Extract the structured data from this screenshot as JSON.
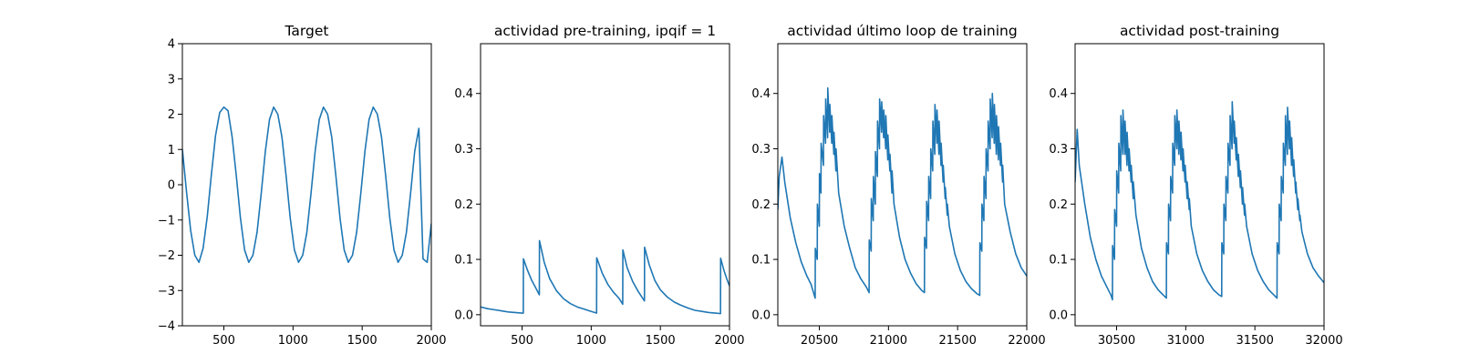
{
  "chart_data": [
    {
      "type": "line",
      "title": "Target",
      "xlabel": "",
      "ylabel": "",
      "xlim": [
        200,
        2000
      ],
      "ylim": [
        -4,
        4
      ],
      "xticks": [
        500,
        1000,
        1500,
        2000
      ],
      "yticks": [
        -4,
        -3,
        -2,
        -1,
        0,
        1,
        2,
        3,
        4
      ],
      "grid": false,
      "color": "#1f77b4",
      "x": [
        200,
        230,
        260,
        290,
        320,
        350,
        380,
        410,
        440,
        470,
        500,
        530,
        560,
        590,
        620,
        650,
        680,
        710,
        740,
        770,
        800,
        830,
        860,
        890,
        920,
        950,
        980,
        1010,
        1040,
        1070,
        1100,
        1130,
        1160,
        1190,
        1220,
        1250,
        1280,
        1310,
        1340,
        1370,
        1400,
        1430,
        1460,
        1490,
        1520,
        1550,
        1580,
        1610,
        1640,
        1670,
        1700,
        1730,
        1760,
        1790,
        1820,
        1850,
        1880,
        1910,
        1940,
        1970,
        2000
      ],
      "y": [
        1.0,
        -0.2,
        -1.3,
        -2.0,
        -2.2,
        -1.8,
        -0.9,
        0.3,
        1.4,
        2.05,
        2.2,
        2.1,
        1.35,
        0.25,
        -0.95,
        -1.85,
        -2.2,
        -2.0,
        -1.35,
        -0.25,
        0.95,
        1.85,
        2.2,
        2.0,
        1.35,
        0.25,
        -0.95,
        -1.85,
        -2.2,
        -2.0,
        -1.35,
        -0.25,
        0.95,
        1.85,
        2.2,
        2.0,
        1.35,
        0.25,
        -0.95,
        -1.85,
        -2.2,
        -2.0,
        -1.35,
        -0.25,
        0.95,
        1.85,
        2.2,
        2.0,
        1.35,
        0.25,
        -0.95,
        -1.85,
        -2.2,
        -2.0,
        -1.35,
        -0.25,
        0.95,
        1.6,
        -2.1,
        -2.2,
        -1.1
      ]
    },
    {
      "type": "line",
      "title": "actividad pre-training, ipqif = 1",
      "xlabel": "",
      "ylabel": "",
      "xlim": [
        200,
        2000
      ],
      "ylim": [
        -0.02,
        0.49
      ],
      "xticks": [
        500,
        1000,
        1500,
        2000
      ],
      "yticks": [
        0.0,
        0.1,
        0.2,
        0.3,
        0.4
      ],
      "grid": false,
      "color": "#1f77b4",
      "x": [
        200,
        250,
        300,
        350,
        400,
        450,
        500,
        509,
        510,
        540,
        570,
        600,
        625,
        626,
        660,
        700,
        750,
        800,
        850,
        900,
        950,
        1000,
        1039,
        1040,
        1080,
        1120,
        1160,
        1200,
        1228,
        1229,
        1260,
        1300,
        1340,
        1385,
        1386,
        1420,
        1460,
        1500,
        1550,
        1600,
        1650,
        1700,
        1750,
        1800,
        1850,
        1900,
        1935,
        1936,
        1960,
        1980,
        2000
      ],
      "y": [
        0.014,
        0.011,
        0.009,
        0.007,
        0.005,
        0.004,
        0.003,
        0.003,
        0.101,
        0.08,
        0.062,
        0.048,
        0.036,
        0.134,
        0.095,
        0.065,
        0.043,
        0.029,
        0.02,
        0.014,
        0.01,
        0.006,
        0.003,
        0.103,
        0.075,
        0.055,
        0.041,
        0.03,
        0.019,
        0.117,
        0.085,
        0.06,
        0.042,
        0.025,
        0.122,
        0.09,
        0.062,
        0.045,
        0.032,
        0.023,
        0.017,
        0.012,
        0.008,
        0.006,
        0.004,
        0.003,
        0.002,
        0.102,
        0.08,
        0.065,
        0.052
      ]
    },
    {
      "type": "line",
      "title": "actividad último loop de training",
      "xlabel": "",
      "ylabel": "",
      "xlim": [
        20200,
        22000
      ],
      "ylim": [
        -0.02,
        0.49
      ],
      "xticks": [
        20500,
        21000,
        21500,
        22000
      ],
      "yticks": [
        0.0,
        0.1,
        0.2,
        0.3,
        0.4
      ],
      "grid": false,
      "color": "#1f77b4",
      "x": [
        20200,
        20210,
        20230,
        20250,
        20290,
        20330,
        20370,
        20410,
        20440,
        20470,
        20471,
        20485,
        20486,
        20500,
        20501,
        20512,
        20513,
        20530,
        20531,
        20545,
        20546,
        20560,
        20561,
        20575,
        20576,
        20590,
        20591,
        20605,
        20606,
        20620,
        20621,
        20640,
        20680,
        20720,
        20760,
        20800,
        20840,
        20860,
        20861,
        20875,
        20876,
        20890,
        20891,
        20905,
        20906,
        20920,
        20921,
        20935,
        20936,
        20950,
        20951,
        20965,
        20966,
        20980,
        20981,
        20995,
        20996,
        21010,
        21011,
        21025,
        21026,
        21040,
        21080,
        21120,
        21160,
        21200,
        21240,
        21260,
        21261,
        21275,
        21276,
        21290,
        21291,
        21305,
        21306,
        21320,
        21321,
        21335,
        21336,
        21350,
        21351,
        21365,
        21366,
        21380,
        21381,
        21395,
        21396,
        21410,
        21411,
        21425,
        21426,
        21440,
        21480,
        21520,
        21560,
        21600,
        21640,
        21660,
        21661,
        21675,
        21676,
        21690,
        21691,
        21705,
        21706,
        21720,
        21721,
        21735,
        21736,
        21750,
        21751,
        21765,
        21766,
        21780,
        21781,
        21795,
        21796,
        21810,
        21811,
        21825,
        21826,
        21840,
        21880,
        21920,
        21960,
        22000
      ],
      "y": [
        0.19,
        0.25,
        0.285,
        0.24,
        0.175,
        0.13,
        0.095,
        0.07,
        0.055,
        0.03,
        0.12,
        0.1,
        0.2,
        0.16,
        0.255,
        0.22,
        0.31,
        0.27,
        0.36,
        0.31,
        0.39,
        0.32,
        0.41,
        0.33,
        0.38,
        0.31,
        0.36,
        0.29,
        0.33,
        0.26,
        0.3,
        0.22,
        0.16,
        0.12,
        0.085,
        0.065,
        0.05,
        0.04,
        0.135,
        0.115,
        0.21,
        0.17,
        0.25,
        0.2,
        0.295,
        0.25,
        0.35,
        0.3,
        0.39,
        0.33,
        0.385,
        0.32,
        0.37,
        0.3,
        0.36,
        0.28,
        0.325,
        0.26,
        0.29,
        0.22,
        0.26,
        0.2,
        0.14,
        0.1,
        0.075,
        0.056,
        0.044,
        0.04,
        0.14,
        0.12,
        0.205,
        0.17,
        0.25,
        0.21,
        0.3,
        0.26,
        0.35,
        0.29,
        0.38,
        0.31,
        0.37,
        0.29,
        0.35,
        0.27,
        0.31,
        0.24,
        0.27,
        0.21,
        0.23,
        0.18,
        0.2,
        0.16,
        0.11,
        0.08,
        0.06,
        0.047,
        0.038,
        0.035,
        0.13,
        0.115,
        0.2,
        0.17,
        0.25,
        0.21,
        0.3,
        0.26,
        0.35,
        0.3,
        0.39,
        0.32,
        0.4,
        0.31,
        0.38,
        0.29,
        0.36,
        0.28,
        0.34,
        0.27,
        0.31,
        0.24,
        0.27,
        0.2,
        0.15,
        0.11,
        0.085,
        0.07
      ]
    },
    {
      "type": "line",
      "title": "actividad post-training",
      "xlabel": "",
      "ylabel": "",
      "xlim": [
        30200,
        32000
      ],
      "ylim": [
        -0.02,
        0.49
      ],
      "xticks": [
        30500,
        31000,
        31500,
        32000
      ],
      "yticks": [
        0.0,
        0.1,
        0.2,
        0.3,
        0.4
      ],
      "grid": false,
      "color": "#1f77b4",
      "x": [
        30200,
        30215,
        30230,
        30270,
        30310,
        30350,
        30390,
        30430,
        30460,
        30470,
        30471,
        30485,
        30486,
        30500,
        30501,
        30515,
        30516,
        30530,
        30531,
        30545,
        30546,
        30560,
        30561,
        30575,
        30576,
        30590,
        30591,
        30605,
        30606,
        30620,
        30621,
        30640,
        30680,
        30720,
        30760,
        30800,
        30840,
        30860,
        30861,
        30875,
        30876,
        30890,
        30891,
        30905,
        30906,
        30920,
        30921,
        30935,
        30936,
        30950,
        30951,
        30965,
        30966,
        30980,
        30981,
        30995,
        30996,
        31010,
        31011,
        31025,
        31026,
        31040,
        31080,
        31120,
        31160,
        31200,
        31240,
        31260,
        31261,
        31275,
        31276,
        31290,
        31291,
        31305,
        31306,
        31320,
        31321,
        31335,
        31336,
        31350,
        31351,
        31365,
        31366,
        31380,
        31381,
        31395,
        31396,
        31410,
        31411,
        31425,
        31426,
        31440,
        31480,
        31520,
        31560,
        31600,
        31640,
        31660,
        31661,
        31675,
        31676,
        31690,
        31691,
        31705,
        31706,
        31720,
        31721,
        31735,
        31736,
        31750,
        31751,
        31765,
        31766,
        31780,
        31781,
        31795,
        31796,
        31810,
        31811,
        31825,
        31826,
        31840,
        31880,
        31920,
        31960,
        32000
      ],
      "y": [
        0.24,
        0.335,
        0.27,
        0.2,
        0.14,
        0.1,
        0.07,
        0.05,
        0.035,
        0.027,
        0.125,
        0.1,
        0.19,
        0.16,
        0.26,
        0.22,
        0.31,
        0.26,
        0.36,
        0.29,
        0.37,
        0.29,
        0.35,
        0.27,
        0.33,
        0.26,
        0.3,
        0.24,
        0.27,
        0.21,
        0.24,
        0.18,
        0.12,
        0.085,
        0.06,
        0.045,
        0.035,
        0.03,
        0.13,
        0.11,
        0.2,
        0.17,
        0.25,
        0.22,
        0.31,
        0.27,
        0.36,
        0.3,
        0.37,
        0.29,
        0.35,
        0.28,
        0.33,
        0.26,
        0.3,
        0.24,
        0.27,
        0.21,
        0.24,
        0.19,
        0.21,
        0.16,
        0.11,
        0.08,
        0.06,
        0.045,
        0.036,
        0.033,
        0.13,
        0.11,
        0.2,
        0.17,
        0.25,
        0.22,
        0.31,
        0.27,
        0.36,
        0.3,
        0.385,
        0.31,
        0.35,
        0.28,
        0.32,
        0.25,
        0.29,
        0.23,
        0.26,
        0.2,
        0.23,
        0.18,
        0.2,
        0.16,
        0.11,
        0.08,
        0.06,
        0.045,
        0.035,
        0.03,
        0.13,
        0.11,
        0.2,
        0.17,
        0.25,
        0.22,
        0.31,
        0.27,
        0.36,
        0.29,
        0.375,
        0.3,
        0.35,
        0.27,
        0.32,
        0.25,
        0.28,
        0.22,
        0.24,
        0.19,
        0.21,
        0.17,
        0.18,
        0.15,
        0.11,
        0.085,
        0.07,
        0.058
      ]
    }
  ]
}
